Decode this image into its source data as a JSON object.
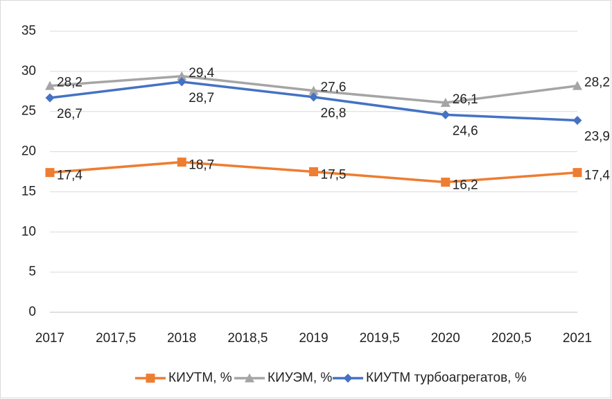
{
  "chart_data": {
    "type": "line",
    "x": [
      2017,
      2018,
      2019,
      2020,
      2021
    ],
    "xlim": [
      2017,
      2021
    ],
    "xticks": [
      2017,
      {
        "value": 2017.5,
        "label": "2017,5"
      },
      2018,
      {
        "value": 2018.5,
        "label": "2018,5"
      },
      2019,
      {
        "value": 2019.5,
        "label": "2019,5"
      },
      2020,
      {
        "value": 2020.5,
        "label": "2020,5"
      },
      2021
    ],
    "ylim": [
      0,
      35
    ],
    "yticks": [
      0,
      5,
      10,
      15,
      20,
      25,
      30,
      35
    ],
    "grid": true,
    "legend": "bottom",
    "series": [
      {
        "name": "КИУТМ, %",
        "color": "#ed7d31",
        "marker": "square",
        "values": [
          17.4,
          18.7,
          17.5,
          16.2,
          17.4
        ],
        "value_labels": [
          "17,4",
          "18,7",
          "17,5",
          "16,2",
          "17,4"
        ]
      },
      {
        "name": "КИУЭМ, %",
        "color": "#a5a5a5",
        "marker": "triangle",
        "values": [
          28.2,
          29.4,
          27.6,
          26.1,
          28.2
        ],
        "value_labels": [
          "28,2",
          "29,4",
          "27,6",
          "26,1",
          "28,2"
        ]
      },
      {
        "name": "КИУТМ турбоагрегатов, %",
        "color": "#4472c4",
        "marker": "diamond",
        "values": [
          26.7,
          28.7,
          26.8,
          24.6,
          23.9
        ],
        "value_labels": [
          "26,7",
          "28,7",
          "26,8",
          "24,6",
          "23,9"
        ]
      }
    ]
  }
}
